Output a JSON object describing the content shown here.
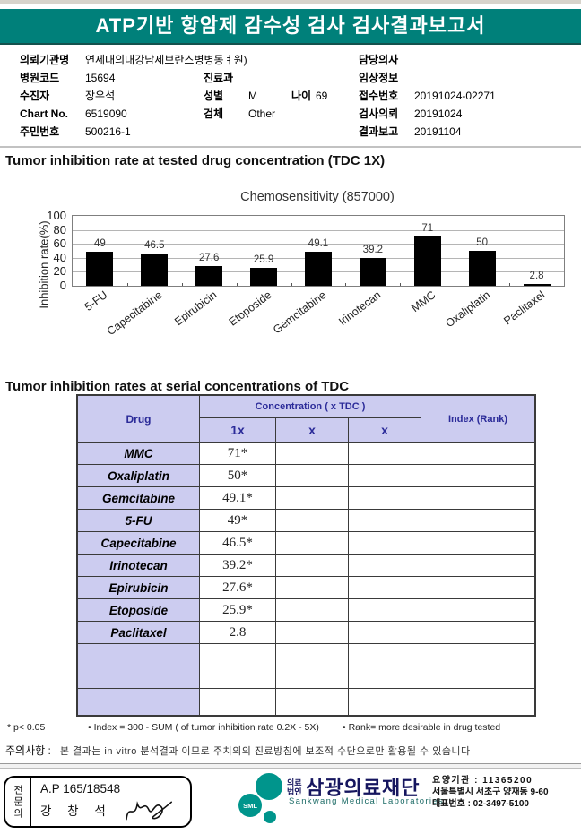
{
  "banner": {
    "title": "ATP기반 항암제 감수성 검사 검사결과보고서"
  },
  "patient_info": {
    "left": [
      {
        "label": "의뢰기관명",
        "value": "연세대의대강남세브란스병병동ㅕ원)"
      },
      {
        "label": "병원코드",
        "value": "15694"
      },
      {
        "label": "수진자",
        "value": "장우석"
      },
      {
        "label": "Chart No.",
        "value": "6519090"
      },
      {
        "label": "주민번호",
        "value": "500216-1"
      }
    ],
    "middle": [
      {
        "label": "진료과",
        "value": ""
      },
      {
        "label": "성별",
        "value": "M",
        "label2": "나이",
        "value2": "69"
      },
      {
        "label": "검체",
        "value": "Other"
      }
    ],
    "right": [
      {
        "label": "담당의사",
        "value": ""
      },
      {
        "label": "임상정보",
        "value": ""
      },
      {
        "label": "접수번호",
        "value": "20191024-02271"
      },
      {
        "label": "검사의뢰",
        "value": "20191024"
      },
      {
        "label": "결과보고",
        "value": "20191104"
      }
    ]
  },
  "section1": {
    "title": "Tumor inhibition rate at tested drug concentration (TDC 1X)"
  },
  "chart_data": {
    "type": "bar",
    "title": "Chemosensitivity (857000)",
    "ylabel": "Inhibition rate(%)",
    "xlabel": "",
    "categories": [
      "5-FU",
      "Capecitabine",
      "Epirubicin",
      "Etoposide",
      "Gemcitabine",
      "Irinotecan",
      "MMC",
      "Oxaliplatin",
      "Paclitaxel"
    ],
    "values": [
      49,
      46.5,
      27.6,
      25.9,
      49.1,
      39.2,
      71,
      50,
      2.8
    ],
    "ylim": [
      0,
      100
    ],
    "yticks": [
      0,
      20,
      40,
      60,
      80,
      100
    ],
    "grid": true,
    "legend": "none",
    "bar_color": "#000000"
  },
  "section2": {
    "title": "Tumor inhibition rates at serial concentrations of TDC"
  },
  "table": {
    "col_drug": "Drug",
    "col_concentration": "Concentration ( x TDC )",
    "sub_cols": [
      "1x",
      "x",
      "x"
    ],
    "col_index": "Index (Rank)",
    "rows": [
      {
        "drug": "MMC",
        "c1": "71*",
        "c2": "",
        "c3": "",
        "index": ""
      },
      {
        "drug": "Oxaliplatin",
        "c1": "50*",
        "c2": "",
        "c3": "",
        "index": ""
      },
      {
        "drug": "Gemcitabine",
        "c1": "49.1*",
        "c2": "",
        "c3": "",
        "index": ""
      },
      {
        "drug": "5-FU",
        "c1": "49*",
        "c2": "",
        "c3": "",
        "index": ""
      },
      {
        "drug": "Capecitabine",
        "c1": "46.5*",
        "c2": "",
        "c3": "",
        "index": ""
      },
      {
        "drug": "Irinotecan",
        "c1": "39.2*",
        "c2": "",
        "c3": "",
        "index": ""
      },
      {
        "drug": "Epirubicin",
        "c1": "27.6*",
        "c2": "",
        "c3": "",
        "index": ""
      },
      {
        "drug": "Etoposide",
        "c1": "25.9*",
        "c2": "",
        "c3": "",
        "index": ""
      },
      {
        "drug": "Paclitaxel",
        "c1": "2.8",
        "c2": "",
        "c3": "",
        "index": ""
      },
      {
        "drug": "",
        "c1": "",
        "c2": "",
        "c3": "",
        "index": ""
      },
      {
        "drug": "",
        "c1": "",
        "c2": "",
        "c3": "",
        "index": ""
      },
      {
        "drug": "",
        "c1": "",
        "c2": "",
        "c3": "",
        "index": ""
      }
    ]
  },
  "footnotes": {
    "f1": "* p< 0.05",
    "f2": "• Index = 300 - SUM ( of tumor inhibition rate 0.2X  -  5X)",
    "f3": "• Rank= more desirable in drug tested",
    "caution_label": "주의사항 :",
    "caution_text": "본 결과는 in vitro 분석결과 이므로 주치의의 진료방침에 보조적 수단으로만 활용될 수 있습니다"
  },
  "footer": {
    "stamp_title": "전문의",
    "stamp_line1": "A.P 165/18548",
    "stamp_name": "강 창 석",
    "logo_text": "SML",
    "org_prefix1": "의료",
    "org_prefix2": "법인",
    "org_name": "삼광의료재단",
    "org_name_en": "Sankwang Medical Laboratories",
    "addr1": "요양기관 : 11365200",
    "addr2": "서울특별시 서초구 양재동 9-60",
    "addr3": "대표번호 : 02-3497-5100"
  },
  "colors": {
    "banner_teal": "#00807a",
    "table_header_bg": "#ccccf0",
    "table_header_text": "#2b2b99",
    "bar_black": "#000000",
    "logo_teal": "#00958c",
    "org_navy": "#15155e"
  }
}
